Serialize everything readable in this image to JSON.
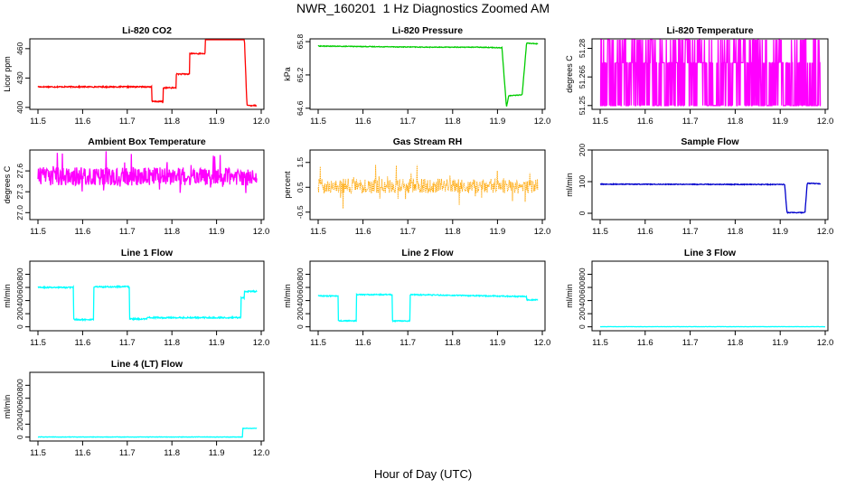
{
  "page": {
    "title": "NWR_160201  1 Hz Diagnostics Zoomed AM",
    "x_axis_title": "Hour of Day (UTC)"
  },
  "chart_data": [
    {
      "type": "line",
      "title": "Li-820 CO2",
      "ylabel": "Licor ppm",
      "color": "#ff0000",
      "xlim": [
        11.5,
        12.0
      ],
      "ylim": [
        398,
        470
      ],
      "xticks": [
        "11.5",
        "11.6",
        "11.7",
        "11.8",
        "11.9",
        "12.0"
      ],
      "yticks": [
        400,
        430,
        460
      ],
      "ytick_labels": [
        "400",
        "430",
        "460"
      ],
      "noise": 0.6,
      "x": [
        11.5,
        11.755,
        11.755,
        11.78,
        11.78,
        11.81,
        11.81,
        11.84,
        11.84,
        11.875,
        11.875,
        11.91,
        11.91,
        11.935,
        11.935,
        11.962,
        11.968,
        11.99
      ],
      "y": [
        421,
        421,
        406,
        406,
        420,
        420,
        434,
        434,
        455,
        455,
        472,
        472,
        475,
        475,
        474,
        474,
        402,
        402
      ]
    },
    {
      "type": "line",
      "title": "Li-820 Pressure",
      "ylabel": "kPa",
      "color": "#00cc00",
      "xlim": [
        11.5,
        12.0
      ],
      "ylim": [
        64.58,
        65.85
      ],
      "xticks": [
        "11.5",
        "11.6",
        "11.7",
        "11.8",
        "11.9",
        "12.0"
      ],
      "yticks": [
        64.6,
        65.2,
        65.8
      ],
      "ytick_labels": [
        "64.6",
        "65.2",
        "65.8"
      ],
      "noise": 0.006,
      "x": [
        11.5,
        11.62,
        11.75,
        11.86,
        11.91,
        11.92,
        11.925,
        11.93,
        11.955,
        11.965,
        11.97,
        11.99
      ],
      "y": [
        65.72,
        65.71,
        65.7,
        65.7,
        65.69,
        64.62,
        64.82,
        64.83,
        64.84,
        65.78,
        65.77,
        65.76
      ]
    },
    {
      "type": "line",
      "title": "Li-820 Temperature",
      "ylabel": "degrees C",
      "color": "#ff00ff",
      "xlim": [
        11.5,
        12.0
      ],
      "ylim": [
        51.248,
        51.285
      ],
      "xticks": [
        "11.5",
        "11.6",
        "11.7",
        "11.8",
        "11.9",
        "12.0"
      ],
      "yticks": [
        51.25,
        51.265,
        51.28
      ],
      "ytick_labels": [
        "51.25",
        "51.265",
        "51.28"
      ],
      "levels": [
        51.25,
        51.2725,
        51.2875
      ],
      "x": [
        11.5,
        11.99
      ],
      "y": [
        51.2725,
        51.2725
      ]
    },
    {
      "type": "line",
      "title": "Ambient Box Temperature",
      "ylabel": "degrees C",
      "color": "#ff00ff",
      "xlim": [
        11.5,
        12.0
      ],
      "ylim": [
        26.9,
        27.9
      ],
      "xticks": [
        "11.5",
        "11.6",
        "11.7",
        "11.8",
        "11.9",
        "12.0"
      ],
      "yticks": [
        27.0,
        27.3,
        27.6
      ],
      "ytick_labels": [
        "27.0",
        "27.3",
        "27.6"
      ],
      "noise": 0.13,
      "spike": 0.3,
      "x": [
        11.5,
        11.99
      ],
      "y": [
        27.52,
        27.52
      ]
    },
    {
      "type": "line",
      "title": "Gas Stream RH",
      "ylabel": "percent",
      "color": "#ffa500",
      "xlim": [
        11.5,
        12.0
      ],
      "ylim": [
        -0.8,
        2.0
      ],
      "xticks": [
        "11.5",
        "11.6",
        "11.7",
        "11.8",
        "11.9",
        "12.0"
      ],
      "yticks": [
        -0.5,
        0.5,
        1.5
      ],
      "ytick_labels": [
        "-0.5",
        "0.5",
        "1.5"
      ],
      "noise": 0.3,
      "spike": 0.8,
      "points": true,
      "x": [
        11.5,
        11.99
      ],
      "y": [
        0.55,
        0.55
      ]
    },
    {
      "type": "line",
      "title": "Sample Flow",
      "ylabel": "ml/min",
      "color": "#0000cc",
      "xlim": [
        11.5,
        12.0
      ],
      "ylim": [
        -20,
        200
      ],
      "xticks": [
        "11.5",
        "11.6",
        "11.7",
        "11.8",
        "11.9",
        "12.0"
      ],
      "yticks": [
        0,
        100,
        200
      ],
      "ytick_labels": [
        "0",
        "100",
        "200"
      ],
      "noise": 1.2,
      "x": [
        11.5,
        11.91,
        11.915,
        11.955,
        11.96,
        11.99
      ],
      "y": [
        92,
        91,
        2,
        2,
        95,
        93
      ]
    },
    {
      "type": "line",
      "title": "Line 1 Flow",
      "ylabel": "ml/min",
      "color": "#00ffff",
      "xlim": [
        11.5,
        12.0
      ],
      "ylim": [
        -60,
        1000
      ],
      "xticks": [
        "11.5",
        "11.6",
        "11.7",
        "11.8",
        "11.9",
        "12.0"
      ],
      "yticks": [
        0,
        200,
        400,
        600,
        800
      ],
      "ytick_labels": [
        "0",
        "200",
        "400",
        "600",
        "800"
      ],
      "noise": 10,
      "x": [
        11.5,
        11.58,
        11.58,
        11.625,
        11.625,
        11.705,
        11.705,
        11.745,
        11.745,
        11.955,
        11.955,
        11.962,
        11.962,
        11.99
      ],
      "y": [
        600,
        600,
        110,
        110,
        610,
        610,
        120,
        120,
        140,
        140,
        440,
        440,
        540,
        540
      ]
    },
    {
      "type": "line",
      "title": "Line 2 Flow",
      "ylabel": "ml/min",
      "color": "#00ffff",
      "xlim": [
        11.5,
        12.0
      ],
      "ylim": [
        -60,
        1000
      ],
      "xticks": [
        "11.5",
        "11.6",
        "11.7",
        "11.8",
        "11.9",
        "12.0"
      ],
      "yticks": [
        0,
        200,
        400,
        600,
        800
      ],
      "ytick_labels": [
        "0",
        "200",
        "400",
        "600",
        "800"
      ],
      "noise": 8,
      "x": [
        11.5,
        11.545,
        11.545,
        11.585,
        11.585,
        11.665,
        11.665,
        11.705,
        11.705,
        11.965,
        11.965,
        11.99
      ],
      "y": [
        470,
        470,
        90,
        90,
        490,
        490,
        90,
        90,
        490,
        460,
        410,
        410
      ]
    },
    {
      "type": "line",
      "title": "Line 3 Flow",
      "ylabel": "ml/min",
      "color": "#00ffff",
      "xlim": [
        11.5,
        12.0
      ],
      "ylim": [
        -60,
        1000
      ],
      "xticks": [
        "11.5",
        "11.6",
        "11.7",
        "11.8",
        "11.9",
        "12.0"
      ],
      "yticks": [
        0,
        200,
        400,
        600,
        800
      ],
      "ytick_labels": [
        "0",
        "200",
        "400",
        "600",
        "800"
      ],
      "noise": 2,
      "x": [
        11.5,
        12.0
      ],
      "y": [
        2,
        2
      ]
    },
    {
      "type": "line",
      "title": "Line 4 (LT) Flow",
      "ylabel": "ml/min",
      "color": "#00ffff",
      "xlim": [
        11.5,
        12.0
      ],
      "ylim": [
        -60,
        1000
      ],
      "xticks": [
        "11.5",
        "11.6",
        "11.7",
        "11.8",
        "11.9",
        "12.0"
      ],
      "yticks": [
        0,
        200,
        400,
        600,
        800
      ],
      "ytick_labels": [
        "0",
        "200",
        "400",
        "600",
        "800"
      ],
      "noise": 3,
      "x": [
        11.5,
        11.958,
        11.958,
        11.99
      ],
      "y": [
        2,
        2,
        135,
        135
      ]
    }
  ]
}
